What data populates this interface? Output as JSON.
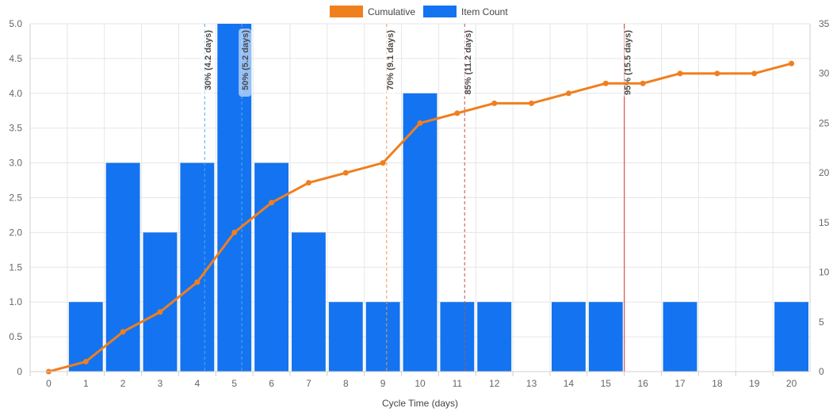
{
  "chart_data": {
    "type": "bar",
    "title": "",
    "xlabel": "Cycle Time (days)",
    "ylabel": "",
    "categories": [
      "0",
      "1",
      "2",
      "3",
      "4",
      "5",
      "6",
      "7",
      "8",
      "9",
      "10",
      "11",
      "12",
      "13",
      "14",
      "15",
      "16",
      "17",
      "18",
      "19",
      "20"
    ],
    "series": [
      {
        "name": "Cumulative",
        "type": "line",
        "axis": "right",
        "color": "#f07f1e",
        "values": [
          0,
          1,
          4,
          6,
          9,
          14,
          17,
          19,
          20,
          21,
          25,
          26,
          27,
          27,
          28,
          29,
          29,
          30,
          30,
          30,
          31
        ]
      },
      {
        "name": "Item Count",
        "type": "bar",
        "axis": "left",
        "color": "#1473f0",
        "values": [
          0,
          1,
          3,
          2,
          3,
          5,
          3,
          2,
          1,
          1,
          4,
          1,
          1,
          0,
          1,
          1,
          0,
          1,
          0,
          0,
          1
        ]
      }
    ],
    "ylim": [
      0,
      5
    ],
    "yticks": [
      "0",
      "0.5",
      "1.0",
      "1.5",
      "2.0",
      "2.5",
      "3.0",
      "3.5",
      "4.0",
      "4.5",
      "5.0"
    ],
    "y2lim": [
      0,
      35
    ],
    "y2ticks": [
      "0",
      "5",
      "10",
      "15",
      "20",
      "25",
      "30",
      "35"
    ],
    "grid": true,
    "legend": "top-center",
    "legend_items": [
      "Cumulative",
      "Item Count"
    ],
    "annotations": [
      {
        "label": "30% (4.2 days)",
        "x": 4.2,
        "color": "#5aa9e6",
        "style": "dashed"
      },
      {
        "label": "50% (5.2 days)",
        "x": 5.2,
        "color": "#5aa9e6",
        "style": "dashed"
      },
      {
        "label": "70% (9.1 days)",
        "x": 9.1,
        "color": "#e8985c",
        "style": "dashed"
      },
      {
        "label": "85% (11.2 days)",
        "x": 11.2,
        "color": "#c0504d",
        "style": "dashed"
      },
      {
        "label": "95% (15.5 days)",
        "x": 15.5,
        "color": "#d9342b",
        "style": "solid"
      }
    ]
  }
}
